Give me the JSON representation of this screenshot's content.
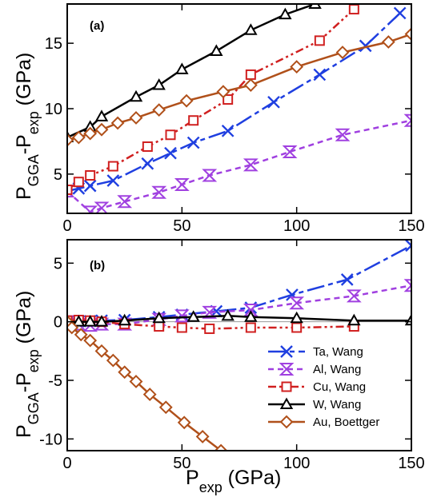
{
  "chart_data": [
    {
      "type": "line",
      "panel_label": "(a)",
      "xlim": [
        0,
        150
      ],
      "ylim": [
        2,
        18
      ],
      "x_ticks": [
        "0",
        "50",
        "100",
        "150"
      ],
      "x_tick_values": [
        0,
        50,
        100,
        150
      ],
      "y_ticks": [
        "5",
        "10",
        "15"
      ],
      "y_tick_values": [
        5,
        10,
        15
      ],
      "ylabel": {
        "main": "P",
        "sub1": "GGA",
        "mid": "-P",
        "sub2": "exp",
        "unit": " (GPa)"
      },
      "series": [
        {
          "key": "ta",
          "color": "#1f3fe0",
          "marker": "x",
          "dash": "22 5 6 5",
          "x": [
            0,
            5,
            10,
            20,
            35,
            45,
            55,
            70,
            90,
            110,
            130,
            145
          ],
          "y": [
            3.7,
            3.9,
            4.1,
            4.5,
            5.8,
            6.6,
            7.4,
            8.3,
            10.5,
            12.6,
            14.8,
            17.3
          ]
        },
        {
          "key": "al",
          "color": "#a040e0",
          "marker": "hourglass",
          "dash": "7 5",
          "x": [
            0,
            10,
            15,
            25,
            40,
            50,
            62,
            80,
            97,
            120,
            150
          ],
          "y": [
            3.7,
            2.1,
            2.4,
            2.9,
            3.6,
            4.2,
            4.9,
            5.7,
            6.7,
            8.0,
            9.1
          ]
        },
        {
          "key": "cu",
          "color": "#d02020",
          "marker": "square",
          "dash": "10 4 3 4 3 4",
          "x": [
            0,
            5,
            10,
            20,
            35,
            45,
            55,
            70,
            80,
            110,
            125
          ],
          "y": [
            3.8,
            4.4,
            4.9,
            5.6,
            7.1,
            8.0,
            9.1,
            10.7,
            12.6,
            15.2,
            17.6
          ]
        },
        {
          "key": "w",
          "color": "#000000",
          "marker": "triangle",
          "dash": "",
          "x": [
            0,
            10,
            15,
            30,
            40,
            50,
            65,
            80,
            95,
            108
          ],
          "y": [
            7.8,
            8.6,
            9.4,
            10.9,
            11.8,
            13.0,
            14.4,
            16.0,
            17.2,
            18.0
          ]
        },
        {
          "key": "au",
          "color": "#b0501a",
          "marker": "diamond",
          "dash": "",
          "x": [
            0,
            5,
            10,
            15,
            22,
            30,
            40,
            52,
            68,
            80,
            100,
            120,
            140,
            150
          ],
          "y": [
            7.6,
            7.8,
            8.1,
            8.4,
            8.9,
            9.3,
            9.9,
            10.6,
            11.3,
            11.8,
            13.2,
            14.3,
            15.1,
            15.7
          ]
        }
      ]
    },
    {
      "type": "line",
      "panel_label": "(b)",
      "xlim": [
        0,
        150
      ],
      "ylim": [
        -11,
        7
      ],
      "x_ticks": [
        "0",
        "50",
        "100",
        "150"
      ],
      "x_tick_values": [
        0,
        50,
        100,
        150
      ],
      "y_ticks": [
        "5",
        "0",
        "-5",
        "-10"
      ],
      "y_tick_values": [
        5,
        0,
        -5,
        -10
      ],
      "xlabel": {
        "main": "P",
        "sub": "exp",
        "unit": " (GPa)"
      },
      "ylabel": {
        "main": "P",
        "sub1": "GGA",
        "mid": "-P",
        "sub2": "exp",
        "unit": " (GPa)"
      },
      "legend_position": "bottom-right",
      "series": [
        {
          "key": "ta",
          "name": "Ta, Wang",
          "color": "#1f3fe0",
          "marker": "x",
          "dash": "22 5 6 5",
          "x": [
            0,
            5,
            10,
            15,
            25,
            40,
            50,
            65,
            80,
            98,
            122,
            150
          ],
          "y": [
            0,
            0.05,
            0.05,
            0.1,
            0.15,
            0.4,
            0.6,
            0.9,
            1.2,
            2.3,
            3.6,
            6.5
          ]
        },
        {
          "key": "al",
          "name": "Al, Wang",
          "color": "#a040e0",
          "marker": "hourglass",
          "dash": "7 5",
          "x": [
            0,
            5,
            10,
            15,
            25,
            40,
            50,
            62,
            80,
            100,
            125,
            150
          ],
          "y": [
            0,
            -0.2,
            -0.3,
            -0.2,
            -0.2,
            0.2,
            0.5,
            0.8,
            1.0,
            1.6,
            2.2,
            3.1
          ]
        },
        {
          "key": "cu",
          "name": "Cu, Wang",
          "color": "#d02020",
          "marker": "square",
          "dash": "10 4 3 4 3 4",
          "x": [
            0,
            5,
            10,
            15,
            25,
            40,
            50,
            62,
            80,
            100,
            125
          ],
          "y": [
            0.1,
            0.15,
            0.1,
            0,
            -0.2,
            -0.4,
            -0.5,
            -0.6,
            -0.5,
            -0.5,
            -0.4
          ]
        },
        {
          "key": "w",
          "name": "W, Wang",
          "color": "#000000",
          "marker": "triangle",
          "dash": "",
          "x": [
            0,
            5,
            10,
            15,
            25,
            40,
            55,
            70,
            80,
            100,
            125,
            150
          ],
          "y": [
            0,
            0,
            0,
            0,
            0.1,
            0.3,
            0.4,
            0.5,
            0.4,
            0.3,
            0.1,
            0.1
          ]
        },
        {
          "key": "au",
          "name": "Au, Boettger",
          "color": "#b0501a",
          "marker": "diamond",
          "dash": "",
          "x": [
            0,
            2,
            6,
            10,
            15,
            20,
            25,
            30,
            36,
            43,
            51,
            59,
            67
          ],
          "y": [
            0,
            -0.5,
            -1.1,
            -1.6,
            -2.5,
            -3.3,
            -4.3,
            -5.1,
            -6.2,
            -7.3,
            -8.6,
            -9.8,
            -11.0
          ]
        }
      ]
    }
  ]
}
